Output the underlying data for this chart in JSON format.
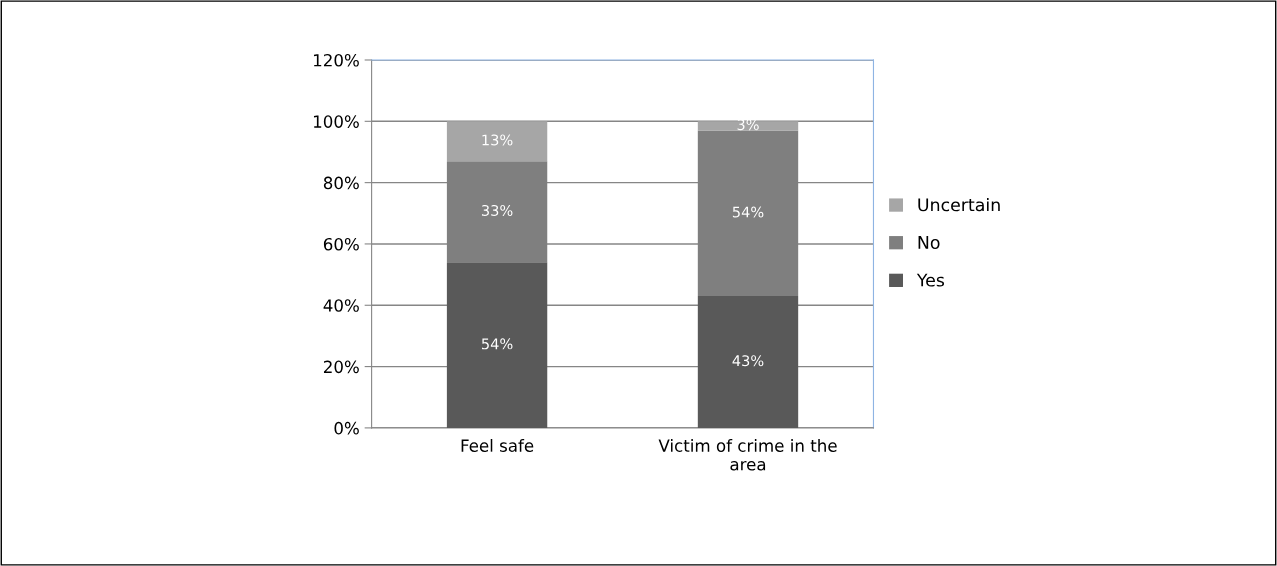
{
  "chart_data": {
    "type": "bar",
    "stacked": true,
    "categories": [
      "Feel safe",
      "Victim of crime in the\narea"
    ],
    "series": [
      {
        "name": "Yes",
        "color": "#595959",
        "values": [
          54,
          43
        ],
        "value_labels": [
          "54%",
          "43%"
        ]
      },
      {
        "name": "No",
        "color": "#7f7f7f",
        "values": [
          33,
          54
        ],
        "value_labels": [
          "33%",
          "54%"
        ]
      },
      {
        "name": "Uncertain",
        "color": "#a6a6a6",
        "values": [
          13,
          3
        ],
        "value_labels": [
          "13%",
          "3%"
        ]
      }
    ],
    "ylim": [
      0,
      120
    ],
    "yticks": [
      {
        "value": 0,
        "label": "0%"
      },
      {
        "value": 20,
        "label": "20%"
      },
      {
        "value": 40,
        "label": "40%"
      },
      {
        "value": 60,
        "label": "60%"
      },
      {
        "value": 80,
        "label": "80%"
      },
      {
        "value": 100,
        "label": "100%"
      },
      {
        "value": 120,
        "label": "120%"
      }
    ],
    "grid": "y",
    "legend": "right"
  }
}
